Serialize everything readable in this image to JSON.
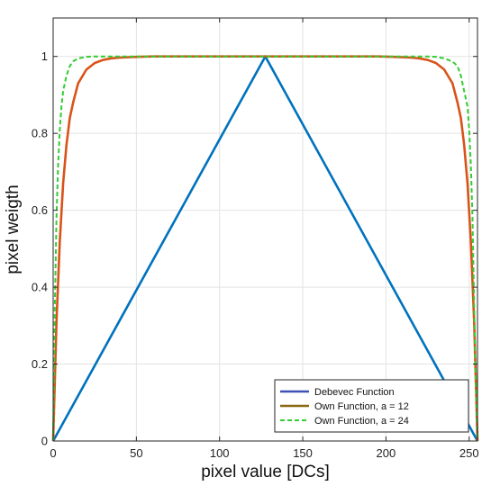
{
  "chart_data": {
    "type": "line",
    "xlabel": "pixel value [DCs]",
    "ylabel": "pixel weigth",
    "xlim": [
      0,
      255
    ],
    "ylim": [
      0,
      1.1
    ],
    "xticks": [
      "0",
      "50",
      "100",
      "150",
      "200",
      "250"
    ],
    "yticks": [
      "0",
      "0.2",
      "0.4",
      "0.6",
      "0.8",
      "1"
    ],
    "grid": true,
    "legend_position": "bottom-right",
    "series": [
      {
        "name": "Debevec Function",
        "color": "#0072BD",
        "legend_color": "#3F51B5",
        "style": "solid",
        "x": [
          0,
          127.5,
          255
        ],
        "y": [
          0,
          1,
          0
        ]
      },
      {
        "name": "Own Function, a = 12",
        "color": "#D95319",
        "legend_color": "#8B6914",
        "style": "solid",
        "x": [
          0,
          2,
          4,
          6,
          8,
          10,
          12,
          15,
          20,
          25,
          30,
          35,
          40,
          50,
          60,
          80,
          100,
          127.5,
          155,
          175,
          195,
          205,
          215,
          220,
          225,
          230,
          235,
          240,
          243,
          245,
          247,
          249,
          251,
          253,
          255
        ],
        "y": [
          0,
          0.31,
          0.52,
          0.67,
          0.77,
          0.84,
          0.88,
          0.93,
          0.966,
          0.983,
          0.991,
          0.995,
          0.997,
          0.999,
          1.0,
          1.0,
          1.0,
          1.0,
          1.0,
          1.0,
          1.0,
          0.999,
          0.997,
          0.995,
          0.991,
          0.983,
          0.966,
          0.93,
          0.88,
          0.84,
          0.77,
          0.67,
          0.52,
          0.31,
          0
        ]
      },
      {
        "name": "Own Function, a = 24",
        "color": "#33CC33",
        "legend_color": "#33CC33",
        "style": "dashed",
        "x": [
          0,
          1,
          2,
          3,
          4,
          5,
          6,
          8,
          10,
          12,
          15,
          20,
          25,
          30,
          127.5,
          225,
          230,
          235,
          240,
          243,
          245,
          247,
          249,
          250,
          251,
          252,
          253,
          254,
          255
        ],
        "y": [
          0,
          0.35,
          0.58,
          0.72,
          0.81,
          0.87,
          0.91,
          0.95,
          0.975,
          0.987,
          0.995,
          0.999,
          1.0,
          1.0,
          1.0,
          1.0,
          0.999,
          0.995,
          0.987,
          0.975,
          0.95,
          0.91,
          0.87,
          0.81,
          0.72,
          0.58,
          0.35,
          0.15,
          0
        ]
      }
    ]
  }
}
